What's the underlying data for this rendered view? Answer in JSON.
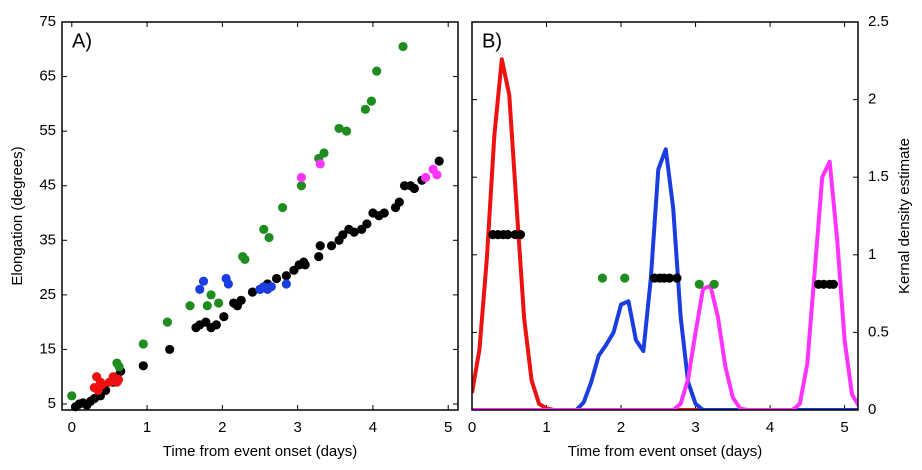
{
  "chart_data": [
    {
      "type": "scatter",
      "label": "A)",
      "xlabel": "Time from event onset (days)",
      "ylabel": "Elongation (degrees)",
      "xlim": [
        -0.13,
        5.13
      ],
      "ylim": [
        3.9,
        75
      ],
      "xticks": [
        0,
        1,
        2,
        3,
        4,
        5
      ],
      "yticks": [
        5,
        15,
        25,
        35,
        45,
        55,
        65,
        75
      ],
      "yaxis_side": "left",
      "series": [
        {
          "type": "scatter",
          "color": "#000000",
          "x": [
            0.05,
            0.1,
            0.15,
            0.2,
            0.25,
            0.3,
            0.38,
            0.45,
            0.55,
            0.6,
            0.65,
            0.95,
            1.3,
            1.65,
            1.7,
            1.78,
            1.85,
            1.92,
            2.02,
            2.15,
            2.2,
            2.25,
            2.4,
            2.5,
            2.6,
            2.72,
            2.85,
            2.95,
            3.02,
            3.08,
            3.1,
            3.28,
            3.3,
            3.45,
            3.55,
            3.6,
            3.68,
            3.75,
            3.85,
            3.92,
            4.0,
            4.08,
            4.15,
            4.3,
            4.35,
            4.42,
            4.5,
            4.55,
            4.65,
            4.88
          ],
          "y": [
            4.5,
            5,
            5.2,
            4.8,
            5.5,
            6,
            6.5,
            7.5,
            9,
            10,
            11,
            12,
            15,
            19,
            19.5,
            20,
            19,
            19.5,
            21,
            23.5,
            23,
            24,
            25.5,
            26,
            27,
            28,
            28.5,
            29.5,
            30.5,
            31,
            30.5,
            32,
            34,
            34,
            35,
            36,
            37,
            36.5,
            37,
            38,
            40,
            39.5,
            40,
            41,
            42,
            45,
            45,
            44.5,
            46,
            49.5
          ]
        },
        {
          "type": "scatter",
          "color": "#1e8c1e",
          "x": [
            0.0,
            0.6,
            0.63,
            0.95,
            1.27,
            1.57,
            1.8,
            1.85,
            1.95,
            2.27,
            2.3,
            2.55,
            2.62,
            2.8,
            3.05,
            3.28,
            3.35,
            3.55,
            3.65,
            3.9,
            3.98,
            4.05,
            4.4
          ],
          "y": [
            6.5,
            12.5,
            11.8,
            16,
            20,
            23,
            23,
            25,
            23.5,
            32,
            31.5,
            37,
            35.5,
            41,
            45,
            50,
            51,
            55.5,
            55,
            59,
            60.5,
            66,
            70.5
          ]
        },
        {
          "type": "scatter",
          "color": "#ee1111",
          "x": [
            0.3,
            0.33,
            0.38,
            0.35,
            0.4,
            0.5,
            0.55,
            0.6,
            0.62
          ],
          "y": [
            8,
            10,
            9,
            7.5,
            8.5,
            9,
            10,
            9,
            9.5
          ]
        },
        {
          "type": "scatter",
          "color": "#1a3de0",
          "x": [
            1.7,
            1.75,
            2.05,
            2.08,
            2.5,
            2.55,
            2.6,
            2.65,
            2.85
          ],
          "y": [
            26,
            27.5,
            28,
            27,
            26,
            26.5,
            26,
            26.5,
            27
          ]
        },
        {
          "type": "scatter",
          "color": "#ff33ff",
          "x": [
            3.05,
            3.3,
            4.7,
            4.8,
            4.85
          ],
          "y": [
            46.5,
            49,
            46.5,
            48,
            47
          ]
        }
      ]
    },
    {
      "type": "line",
      "label": "B)",
      "xlabel": "Time from event onset (days)",
      "ylabel": "Kernal density estimate",
      "xlim": [
        0,
        5.18
      ],
      "ylim": [
        0,
        2.5
      ],
      "xticks": [
        0,
        1,
        2,
        3,
        4,
        5
      ],
      "yticks": [
        0,
        0.5,
        1,
        1.5,
        2,
        2.5
      ],
      "yaxis_side": "right",
      "x": [
        0,
        0.1,
        0.2,
        0.3,
        0.4,
        0.5,
        0.6,
        0.7,
        0.8,
        0.9,
        1,
        1.1,
        1.2,
        1.3,
        1.4,
        1.5,
        1.6,
        1.7,
        1.8,
        1.9,
        2,
        2.1,
        2.2,
        2.3,
        2.4,
        2.5,
        2.6,
        2.7,
        2.8,
        2.9,
        3,
        3.1,
        3.2,
        3.3,
        3.4,
        3.5,
        3.6,
        3.7,
        3.8,
        3.9,
        4,
        4.1,
        4.2,
        4.3,
        4.4,
        4.5,
        4.6,
        4.7,
        4.8,
        4.9,
        5,
        5.1,
        5.2
      ],
      "series": [
        {
          "type": "line",
          "color": "#ee1111",
          "values": [
            0.11,
            0.39,
            0.98,
            1.77,
            2.26,
            2.03,
            1.3,
            0.59,
            0.19,
            0.04,
            0.01,
            0,
            0,
            0,
            0,
            0,
            0,
            0,
            0,
            0,
            0,
            0,
            0,
            0,
            0,
            0,
            0,
            0,
            0,
            0,
            0,
            0,
            0,
            0,
            0,
            0,
            0,
            0,
            0,
            0,
            0,
            0,
            0,
            0,
            0,
            0,
            0,
            0,
            0,
            0,
            0,
            0,
            0
          ]
        },
        {
          "type": "line",
          "color": "#1a3de0",
          "values": [
            0,
            0,
            0,
            0,
            0,
            0,
            0,
            0,
            0,
            0,
            0,
            0,
            0,
            0,
            0,
            0.05,
            0.18,
            0.35,
            0.42,
            0.5,
            0.68,
            0.7,
            0.45,
            0.38,
            0.85,
            1.55,
            1.68,
            1.3,
            0.6,
            0.18,
            0.04,
            0,
            0,
            0,
            0,
            0,
            0,
            0,
            0,
            0,
            0,
            0,
            0,
            0,
            0,
            0,
            0,
            0,
            0,
            0,
            0,
            0,
            0
          ]
        },
        {
          "type": "line",
          "color": "#ff33ff",
          "values": [
            0,
            0,
            0,
            0,
            0,
            0,
            0,
            0,
            0,
            0,
            0,
            0,
            0,
            0,
            0,
            0,
            0,
            0,
            0,
            0,
            0,
            0,
            0,
            0,
            0,
            0,
            0,
            0,
            0.04,
            0.2,
            0.5,
            0.78,
            0.8,
            0.6,
            0.28,
            0.08,
            0.01,
            0,
            0,
            0,
            0,
            0,
            0,
            0,
            0.04,
            0.3,
            0.9,
            1.5,
            1.6,
            1.1,
            0.45,
            0.1,
            0.02
          ]
        },
        {
          "type": "scatter",
          "color": "#000000",
          "x": [
            0.28,
            0.35,
            0.42,
            0.48,
            0.58,
            0.65,
            2.45,
            2.52,
            2.58,
            2.65,
            2.75,
            4.65,
            4.72,
            4.8,
            4.85
          ],
          "y": [
            1.13,
            1.13,
            1.13,
            1.13,
            1.13,
            1.13,
            0.85,
            0.85,
            0.85,
            0.85,
            0.85,
            0.81,
            0.81,
            0.81,
            0.81
          ]
        },
        {
          "type": "scatter",
          "color": "#1e8c1e",
          "x": [
            1.75,
            2.05,
            3.05,
            3.25
          ],
          "y": [
            0.85,
            0.85,
            0.81,
            0.81
          ]
        }
      ]
    }
  ]
}
